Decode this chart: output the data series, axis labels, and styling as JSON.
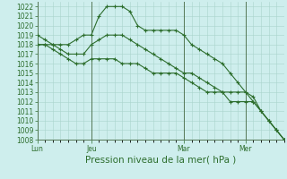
{
  "background_color": "#ceeeed",
  "grid_color": "#aad4cc",
  "line_color": "#2d6e2d",
  "marker_color": "#2d6e2d",
  "xlabel": "Pression niveau de la mer( hPa )",
  "ylim": [
    1008,
    1022.5
  ],
  "yticks": [
    1008,
    1009,
    1010,
    1011,
    1012,
    1013,
    1014,
    1015,
    1016,
    1017,
    1018,
    1019,
    1020,
    1021,
    1022
  ],
  "xtick_labels": [
    "Lun",
    "Jeu",
    "Mar",
    "Mer"
  ],
  "xtick_positions": [
    0,
    7,
    19,
    27
  ],
  "total_points": 33,
  "series": [
    [
      1019,
      1018.5,
      1018,
      1018,
      1018,
      1018.5,
      1019,
      1019,
      1021,
      1022,
      1022,
      1022,
      1021.5,
      1020,
      1019.5,
      1019.5,
      1019.5,
      1019.5,
      1019.5,
      1019,
      1018,
      1017.5,
      1017,
      1016.5,
      1016,
      1015,
      1014,
      1013,
      1012,
      1011,
      1010,
      1009,
      1008
    ],
    [
      1018,
      1018,
      1018,
      1017.5,
      1017,
      1017,
      1017,
      1018,
      1018.5,
      1019,
      1019,
      1019,
      1018.5,
      1018,
      1017.5,
      1017,
      1016.5,
      1016,
      1015.5,
      1015,
      1015,
      1014.5,
      1014,
      1013.5,
      1013,
      1012,
      1012,
      1012,
      1012,
      1011,
      1010,
      1009,
      1008
    ],
    [
      1018,
      1018,
      1017.5,
      1017,
      1016.5,
      1016,
      1016,
      1016.5,
      1016.5,
      1016.5,
      1016.5,
      1016,
      1016,
      1016,
      1015.5,
      1015,
      1015,
      1015,
      1015,
      1014.5,
      1014,
      1013.5,
      1013,
      1013,
      1013,
      1013,
      1013,
      1013,
      1012.5,
      1011,
      1010,
      1009,
      1008
    ]
  ],
  "tick_fontsize": 5.5,
  "xlabel_fontsize": 7.5
}
